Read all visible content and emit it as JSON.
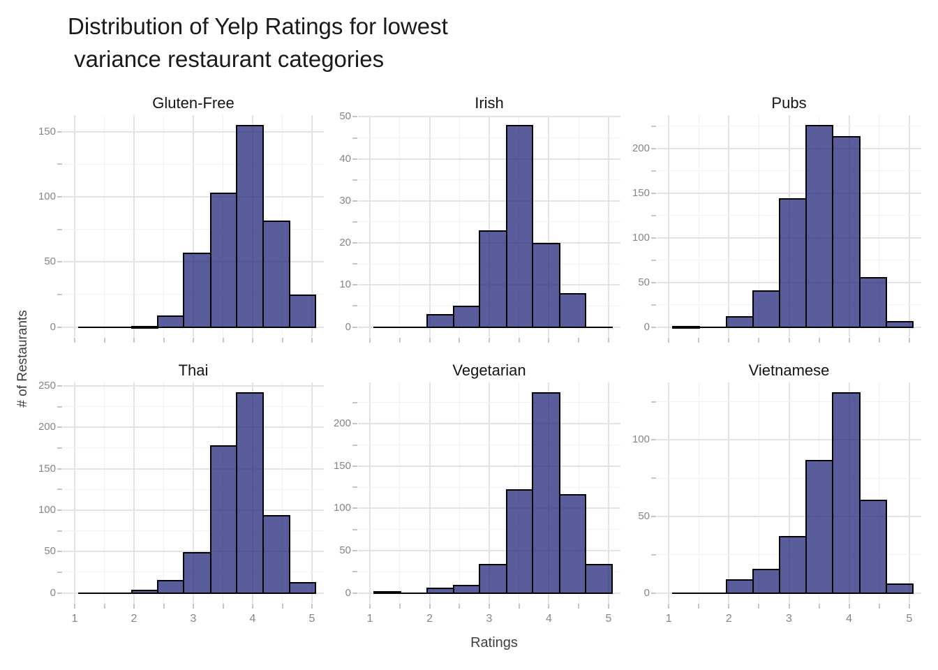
{
  "title": {
    "line1": "Distribution of Yelp Ratings for lowest",
    "line2": " variance restaurant categories"
  },
  "axes": {
    "x_title": "Ratings",
    "y_title": "# of Restaurants"
  },
  "chart_data": {
    "type": "bar",
    "subtype": "faceted-histogram",
    "title": "Distribution of Yelp Ratings for lowest variance restaurant categories",
    "xlabel": "Ratings",
    "ylabel": "# of Restaurants",
    "x_range_shown": [
      0.8,
      5.2
    ],
    "x_ticks": [
      1,
      2,
      3,
      4,
      5
    ],
    "x_minor_ticks": [
      1.5,
      2.5,
      3.5,
      4.5
    ],
    "bin_edges": [
      1.07,
      1.51,
      1.96,
      2.4,
      2.84,
      3.29,
      3.73,
      4.18,
      4.62,
      5.06
    ],
    "grid": true,
    "legend": "none",
    "facets": [
      {
        "label": "Gluten-Free",
        "row": 0,
        "col": 0,
        "counts": [
          0,
          0,
          1,
          9,
          57,
          103,
          155,
          82,
          25
        ],
        "y_ticks": [
          0,
          50,
          100,
          150
        ],
        "y_minor_ticks": [
          25,
          75,
          125
        ]
      },
      {
        "label": "Irish",
        "row": 0,
        "col": 1,
        "counts": [
          0,
          0,
          3,
          5,
          23,
          48,
          20,
          8,
          0
        ],
        "y_ticks": [
          0,
          10,
          20,
          30,
          40,
          50
        ],
        "y_minor_ticks": [
          5,
          15,
          25,
          35,
          45
        ]
      },
      {
        "label": "Pubs",
        "row": 0,
        "col": 2,
        "counts": [
          1,
          0,
          12,
          41,
          144,
          226,
          214,
          56,
          7
        ],
        "y_ticks": [
          0,
          50,
          100,
          150,
          200
        ],
        "y_minor_ticks": [
          25,
          75,
          125,
          175,
          225
        ]
      },
      {
        "label": "Thai",
        "row": 1,
        "col": 0,
        "counts": [
          0,
          0,
          4,
          16,
          49,
          178,
          242,
          94,
          13
        ],
        "y_ticks": [
          0,
          50,
          100,
          150,
          200,
          250
        ],
        "y_minor_ticks": [
          25,
          75,
          125,
          175,
          225
        ]
      },
      {
        "label": "Vegetarian",
        "row": 1,
        "col": 1,
        "counts": [
          2,
          0,
          6,
          10,
          34,
          123,
          237,
          117,
          34
        ],
        "y_ticks": [
          0,
          50,
          100,
          150,
          200
        ],
        "y_minor_ticks": [
          25,
          75,
          125,
          175,
          225
        ]
      },
      {
        "label": "Vietnamese",
        "row": 1,
        "col": 2,
        "counts": [
          0,
          0,
          9,
          16,
          37,
          87,
          131,
          61,
          6
        ],
        "y_ticks": [
          0,
          50,
          100
        ],
        "y_minor_ticks": [
          25,
          75,
          125
        ]
      }
    ],
    "colors": {
      "bar_fill": "#5c5f9e",
      "bar_stroke": "#000000",
      "grid_major": "#e3e3e3",
      "grid_minor": "#f0f0f0",
      "tick_mark": "#c6c6c6",
      "tick_label": "#858585",
      "strip_label": "#141414",
      "title": "#1a1a1a",
      "axis_title": "#3f3f3f"
    }
  }
}
